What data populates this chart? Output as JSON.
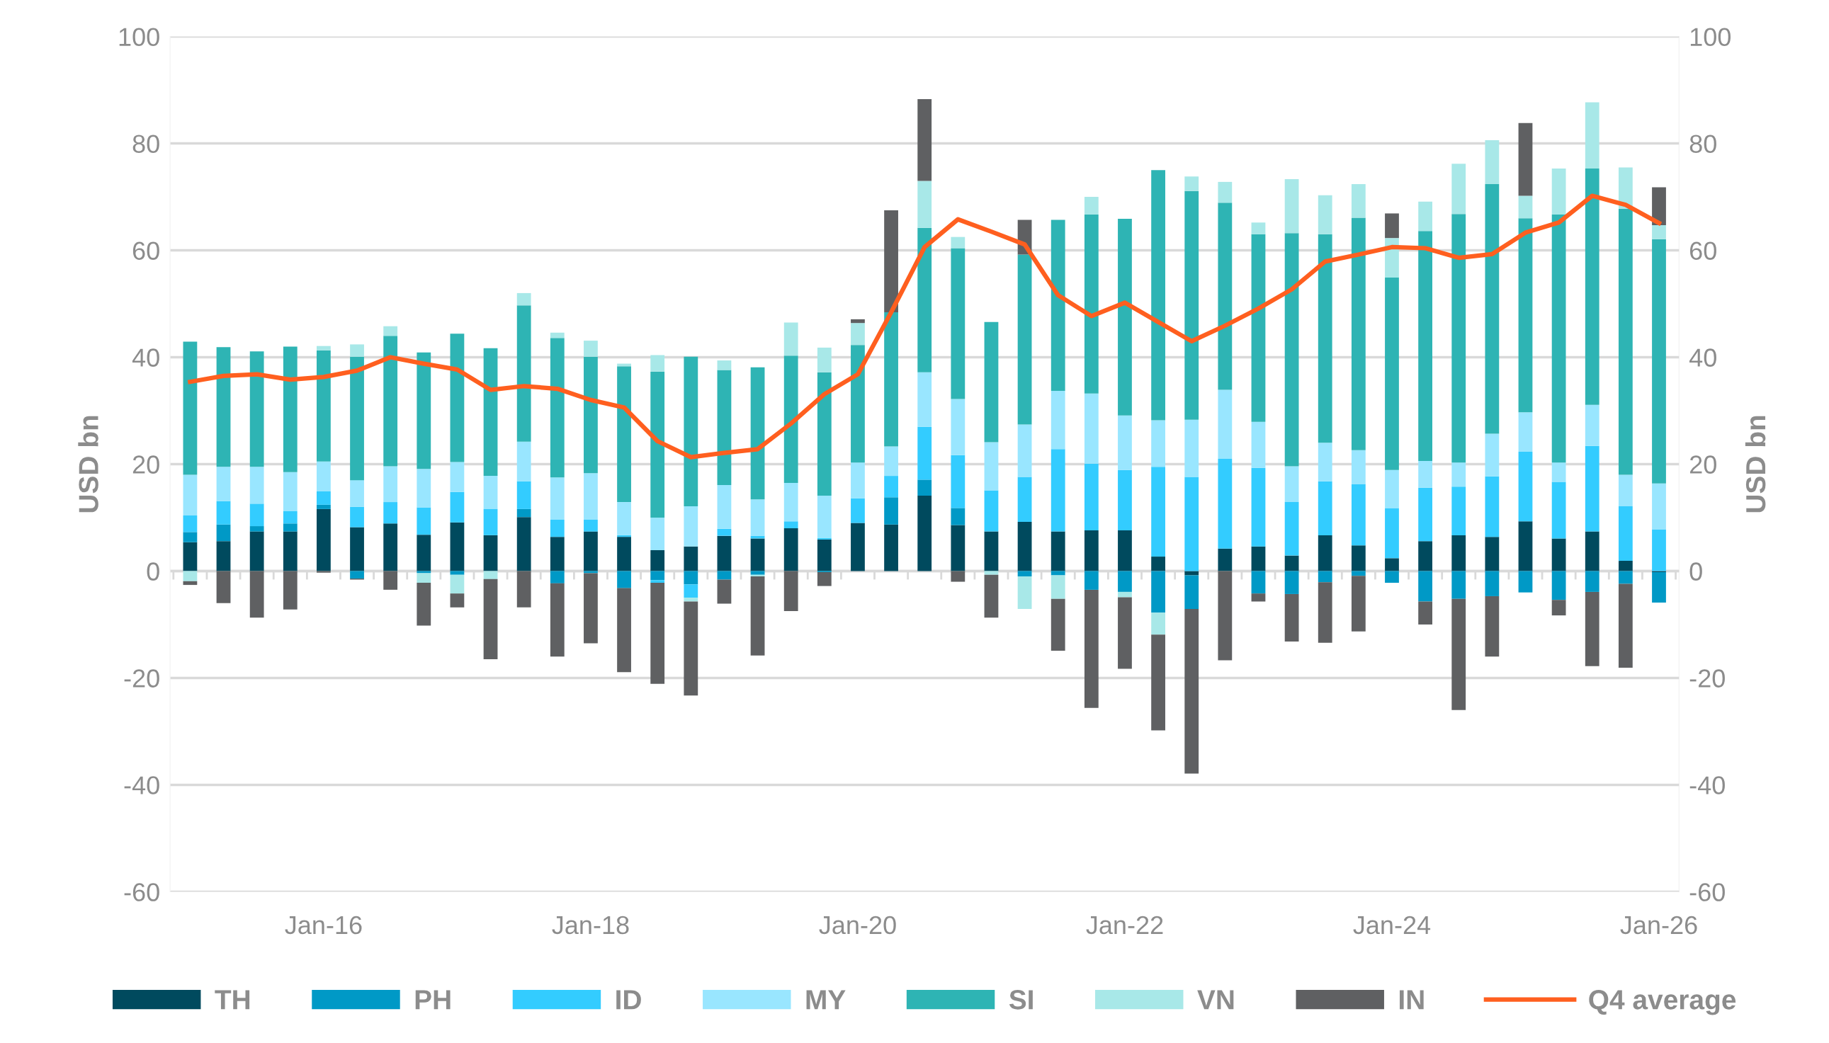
{
  "chart_data": {
    "type": "bar",
    "stacked": true,
    "ylabel": "USD bn",
    "y2label": "USD bn",
    "categories": [
      null,
      null,
      null,
      null,
      "Jan-16",
      null,
      null,
      null,
      null,
      null,
      null,
      null,
      "Jan-18",
      null,
      null,
      null,
      null,
      null,
      null,
      null,
      "Jan-20",
      null,
      null,
      null,
      null,
      null,
      null,
      null,
      "Jan-22",
      null,
      null,
      null,
      null,
      null,
      null,
      null,
      "Jan-24",
      null,
      null,
      null,
      null,
      null,
      null,
      null,
      "Jan-26"
    ],
    "ylim": [
      -60,
      100
    ],
    "yticks": [
      -60,
      -40,
      -20,
      0,
      20,
      40,
      60,
      80,
      100
    ],
    "y2lim": [
      -60,
      100
    ],
    "y2ticks": [
      -60,
      -40,
      -20,
      0,
      20,
      40,
      60,
      80,
      100
    ],
    "grid": "y",
    "legend": "bottom",
    "series": [
      {
        "name": "TH",
        "color": "#004a5e",
        "values": [
          5.4,
          5.6,
          7.4,
          7.4,
          11.6,
          8.2,
          8.9,
          6.8,
          9.1,
          6.7,
          10.1,
          6.4,
          7.4,
          6.4,
          3.9,
          4.6,
          6.6,
          6.1,
          8.0,
          5.9,
          9.0,
          8.7,
          14.1,
          8.6,
          7.4,
          9.2,
          7.4,
          7.6,
          7.6,
          2.7,
          -0.8,
          4.2,
          4.6,
          2.9,
          6.7,
          4.8,
          2.4,
          5.6,
          6.7,
          6.4,
          9.3,
          6.1,
          7.4,
          1.9,
          -0.2
        ]
      },
      {
        "name": "PH",
        "color": "#0099c6",
        "values": [
          1.9,
          3.1,
          1.0,
          1.5,
          0.8,
          -1.4,
          0,
          -0.4,
          -0.7,
          0,
          1.5,
          -2.3,
          -0.4,
          -3.2,
          -1.7,
          -2.5,
          -1.6,
          -0.7,
          0,
          -0.2,
          0,
          5.1,
          3.0,
          3.2,
          0,
          -1.0,
          -0.8,
          -3.5,
          -3.9,
          -7.8,
          -6.3,
          0,
          -4.2,
          -4.3,
          -2.1,
          -0.9,
          -2.2,
          -5.7,
          -5.2,
          -4.7,
          -4.0,
          -5.4,
          -3.9,
          -2.4,
          -5.7
        ]
      },
      {
        "name": "ID",
        "color": "#33ccff",
        "values": [
          3.1,
          4.4,
          4.2,
          2.3,
          2.5,
          3.8,
          4.0,
          5.1,
          5.7,
          4.9,
          5.2,
          3.2,
          2.2,
          0.3,
          -0.5,
          -2.5,
          1.3,
          0.5,
          1.3,
          0.3,
          4.6,
          4.0,
          9.9,
          9.9,
          7.7,
          8.4,
          15.4,
          12.5,
          11.3,
          16.8,
          17.6,
          16.8,
          14.7,
          10.0,
          10.1,
          11.5,
          9.4,
          10.0,
          9.1,
          11.3,
          13.0,
          10.6,
          16.0,
          10.2,
          7.8
        ]
      },
      {
        "name": "MY",
        "color": "#99e6ff",
        "values": [
          7.6,
          6.4,
          6.9,
          7.3,
          5.6,
          5.0,
          6.7,
          7.2,
          5.6,
          6.2,
          7.4,
          7.9,
          8.7,
          6.2,
          6.1,
          7.5,
          8.2,
          6.8,
          7.2,
          7.9,
          6.7,
          5.5,
          10.2,
          10.5,
          9.0,
          9.8,
          10.9,
          13.1,
          10.2,
          8.7,
          10.7,
          12.9,
          8.6,
          6.7,
          7.2,
          6.3,
          7.1,
          5.0,
          4.5,
          8.0,
          7.4,
          3.6,
          7.7,
          5.9,
          8.6
        ]
      },
      {
        "name": "SI",
        "color": "#2eb4b4",
        "values": [
          24.9,
          22.4,
          21.6,
          23.5,
          20.8,
          23.1,
          24.4,
          21.8,
          24.0,
          23.9,
          25.5,
          26.1,
          21.8,
          25.4,
          27.3,
          28.0,
          21.5,
          24.7,
          23.8,
          23.1,
          22.0,
          25.1,
          27.0,
          28.2,
          22.5,
          31.8,
          32.0,
          33.5,
          36.8,
          46.8,
          42.8,
          35.0,
          35.1,
          43.6,
          39.0,
          43.5,
          36.0,
          43.0,
          46.5,
          46.7,
          36.3,
          46.4,
          44.2,
          49.8,
          45.7
        ]
      },
      {
        "name": "VN",
        "color": "#a8e8e8",
        "values": [
          -1.9,
          0,
          0,
          0,
          0.8,
          2.3,
          1.8,
          -1.8,
          -3.5,
          -1.5,
          2.3,
          1.0,
          3.0,
          0.5,
          3.1,
          -0.7,
          1.8,
          -0.3,
          6.2,
          4.6,
          4.1,
          0,
          8.8,
          2.1,
          -0.7,
          -6.1,
          -4.4,
          3.3,
          -1.0,
          -4.1,
          2.7,
          3.9,
          2.2,
          10.1,
          7.3,
          6.3,
          7.4,
          5.5,
          9.4,
          8.2,
          4.2,
          8.6,
          12.4,
          7.7,
          2.6
        ]
      },
      {
        "name": "IN",
        "color": "#5f6062",
        "values": [
          -0.7,
          -6.0,
          -8.7,
          -7.2,
          -0.3,
          -0.2,
          -3.5,
          -8.0,
          -2.6,
          -15.0,
          -6.8,
          -13.7,
          -13.1,
          -15.7,
          -18.9,
          -17.6,
          -4.5,
          -14.8,
          -7.5,
          -2.6,
          0.7,
          19.1,
          15.3,
          -2.0,
          -8.0,
          6.5,
          -9.7,
          -22.1,
          -13.4,
          -17.9,
          -30.8,
          -16.7,
          -1.5,
          -8.9,
          -11.3,
          -10.4,
          4.6,
          -4.3,
          -20.8,
          -11.3,
          13.6,
          -2.9,
          -13.9,
          -15.7,
          7.1
        ]
      },
      {
        "name": "Q4 average",
        "type": "line",
        "color": "#ff5f1f",
        "values": [
          35.4,
          36.5,
          36.8,
          35.8,
          36.3,
          37.5,
          40.0,
          38.8,
          37.7,
          33.9,
          34.6,
          34.1,
          32.0,
          30.6,
          24.3,
          21.3,
          22.1,
          22.8,
          27.6,
          33.1,
          36.8,
          48.4,
          60.6,
          65.8,
          63.5,
          61.1,
          51.6,
          47.7,
          50.2,
          46.6,
          43.0,
          45.9,
          49.1,
          52.7,
          57.9,
          59.2,
          60.6,
          60.4,
          58.6,
          59.3,
          63.3,
          65.2,
          70.2,
          68.5,
          65.1
        ]
      }
    ]
  }
}
